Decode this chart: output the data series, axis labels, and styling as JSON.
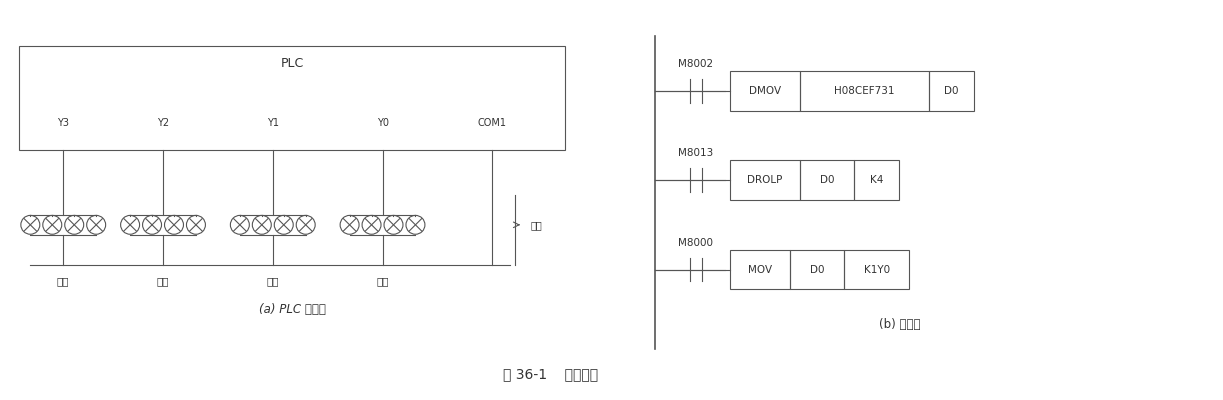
{
  "fig_width": 12.23,
  "fig_height": 4.0,
  "bg_color": "#ffffff",
  "line_color": "#555555",
  "text_color": "#333333",
  "title": "图 36-1    彩灯控制",
  "left_label": "(a) PLC 接线图",
  "right_label": "(b) 梯形图",
  "plc_label": "PLC",
  "terminals": [
    "Y3",
    "Y2",
    "Y1",
    "Y0",
    "COM1"
  ],
  "lamp_groups": [
    "蓝灯",
    "绿灯",
    "黄灯",
    "红灯"
  ],
  "power_label": "电源",
  "ladder_rows": [
    {
      "contact": "M8002",
      "instruction": "DMOV",
      "operand1": "H08CEF731",
      "operand2": "D0"
    },
    {
      "contact": "M8013",
      "instruction": "DROLP",
      "operand1": "D0",
      "operand2": "K4"
    },
    {
      "contact": "M8000",
      "instruction": "MOV",
      "operand1": "D0",
      "operand2": "K1Y0"
    }
  ]
}
